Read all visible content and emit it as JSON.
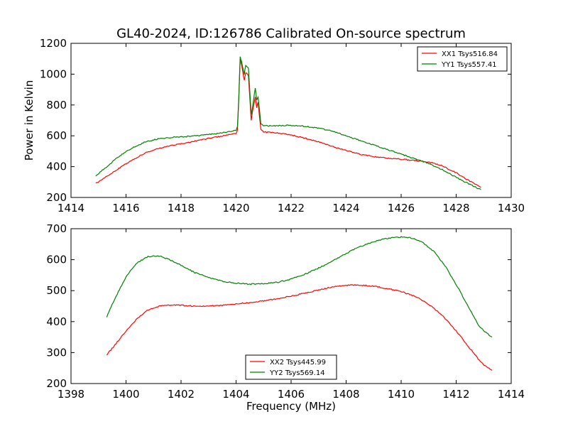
{
  "title": "GL40-2024, ID:126786 Calibrated On-source spectrum",
  "colors": {
    "red": "#ff0000",
    "green": "#008000"
  },
  "chart_data": [
    {
      "type": "line",
      "ylabel": "Power in Kelvin",
      "xlabel": "",
      "xlim": [
        1414,
        1430
      ],
      "ylim": [
        200,
        1200
      ],
      "xticks": [
        1414,
        1416,
        1418,
        1420,
        1422,
        1424,
        1426,
        1428,
        1430
      ],
      "yticks": [
        200,
        400,
        600,
        800,
        1000,
        1200
      ],
      "legend_position": "top-right",
      "series": [
        {
          "name": "XX1 Tsys516.84",
          "color": "#ff0000",
          "x": [
            1414.9,
            1415.3,
            1415.7,
            1416.2,
            1416.7,
            1417.2,
            1417.7,
            1418.2,
            1418.7,
            1419.2,
            1419.7,
            1420.0,
            1420.05,
            1420.1,
            1420.15,
            1420.2,
            1420.3,
            1420.35,
            1420.45,
            1420.55,
            1420.6,
            1420.7,
            1420.75,
            1420.8,
            1420.9,
            1421.0,
            1421.5,
            1422.0,
            1422.5,
            1423.0,
            1423.5,
            1424.0,
            1424.5,
            1425.0,
            1425.5,
            1426.0,
            1426.5,
            1427.0,
            1427.5,
            1428.0,
            1428.5,
            1428.9
          ],
          "y": [
            290,
            335,
            385,
            440,
            490,
            520,
            540,
            555,
            572,
            590,
            605,
            615,
            640,
            850,
            1100,
            1060,
            960,
            1010,
            990,
            700,
            760,
            850,
            780,
            820,
            640,
            625,
            618,
            605,
            585,
            560,
            530,
            505,
            480,
            465,
            455,
            448,
            440,
            430,
            405,
            360,
            305,
            265
          ]
        },
        {
          "name": "YY1 Tsys557.41",
          "color": "#008000",
          "x": [
            1414.9,
            1415.3,
            1415.7,
            1416.2,
            1416.7,
            1417.2,
            1417.7,
            1418.2,
            1418.7,
            1419.2,
            1419.7,
            1420.0,
            1420.05,
            1420.1,
            1420.15,
            1420.2,
            1420.3,
            1420.35,
            1420.45,
            1420.55,
            1420.6,
            1420.7,
            1420.75,
            1420.8,
            1420.9,
            1421.0,
            1421.5,
            1422.0,
            1422.5,
            1423.0,
            1423.5,
            1424.0,
            1424.5,
            1425.0,
            1425.5,
            1426.0,
            1426.5,
            1427.0,
            1427.5,
            1428.0,
            1428.5,
            1428.9
          ],
          "y": [
            340,
            400,
            460,
            520,
            560,
            582,
            590,
            595,
            602,
            612,
            625,
            635,
            660,
            850,
            1110,
            1080,
            1000,
            1060,
            1040,
            740,
            790,
            910,
            830,
            850,
            680,
            665,
            665,
            668,
            662,
            650,
            630,
            600,
            570,
            540,
            510,
            482,
            450,
            420,
            380,
            330,
            285,
            250
          ]
        }
      ]
    },
    {
      "type": "line",
      "ylabel": "",
      "xlabel": "Frequency (MHz)",
      "xlim": [
        1398,
        1414
      ],
      "ylim": [
        200,
        700
      ],
      "xticks": [
        1398,
        1400,
        1402,
        1404,
        1406,
        1408,
        1410,
        1412,
        1414
      ],
      "yticks": [
        200,
        300,
        400,
        500,
        600,
        700
      ],
      "legend_position": "bottom-center",
      "series": [
        {
          "name": "XX2 Tsys445.99",
          "color": "#ff0000",
          "x": [
            1399.3,
            1399.6,
            1400.0,
            1400.4,
            1400.8,
            1401.2,
            1401.6,
            1402.0,
            1402.5,
            1403.0,
            1403.5,
            1404.0,
            1404.5,
            1405.0,
            1405.5,
            1406.0,
            1406.5,
            1407.0,
            1407.5,
            1408.0,
            1408.4,
            1408.8,
            1409.2,
            1409.6,
            1410.0,
            1410.4,
            1410.8,
            1411.2,
            1411.6,
            1412.0,
            1412.4,
            1412.8,
            1413.0,
            1413.3
          ],
          "y": [
            293,
            325,
            370,
            410,
            438,
            450,
            453,
            453,
            450,
            450,
            453,
            457,
            462,
            467,
            474,
            482,
            492,
            502,
            512,
            517,
            518,
            516,
            512,
            505,
            497,
            485,
            468,
            443,
            410,
            370,
            325,
            280,
            260,
            243
          ]
        },
        {
          "name": "YY2 Tsys569.14",
          "color": "#008000",
          "x": [
            1399.3,
            1399.6,
            1400.0,
            1400.4,
            1400.8,
            1401.2,
            1401.6,
            1402.0,
            1402.5,
            1403.0,
            1403.5,
            1404.0,
            1404.5,
            1405.0,
            1405.5,
            1406.0,
            1406.5,
            1407.0,
            1407.5,
            1408.0,
            1408.4,
            1408.8,
            1409.2,
            1409.6,
            1410.0,
            1410.4,
            1410.8,
            1411.2,
            1411.6,
            1412.0,
            1412.4,
            1412.8,
            1413.0,
            1413.3
          ],
          "y": [
            415,
            475,
            545,
            590,
            610,
            612,
            600,
            582,
            558,
            543,
            530,
            524,
            521,
            522,
            527,
            537,
            553,
            573,
            596,
            620,
            638,
            652,
            663,
            670,
            673,
            670,
            655,
            625,
            580,
            520,
            455,
            390,
            370,
            350
          ]
        }
      ]
    }
  ]
}
